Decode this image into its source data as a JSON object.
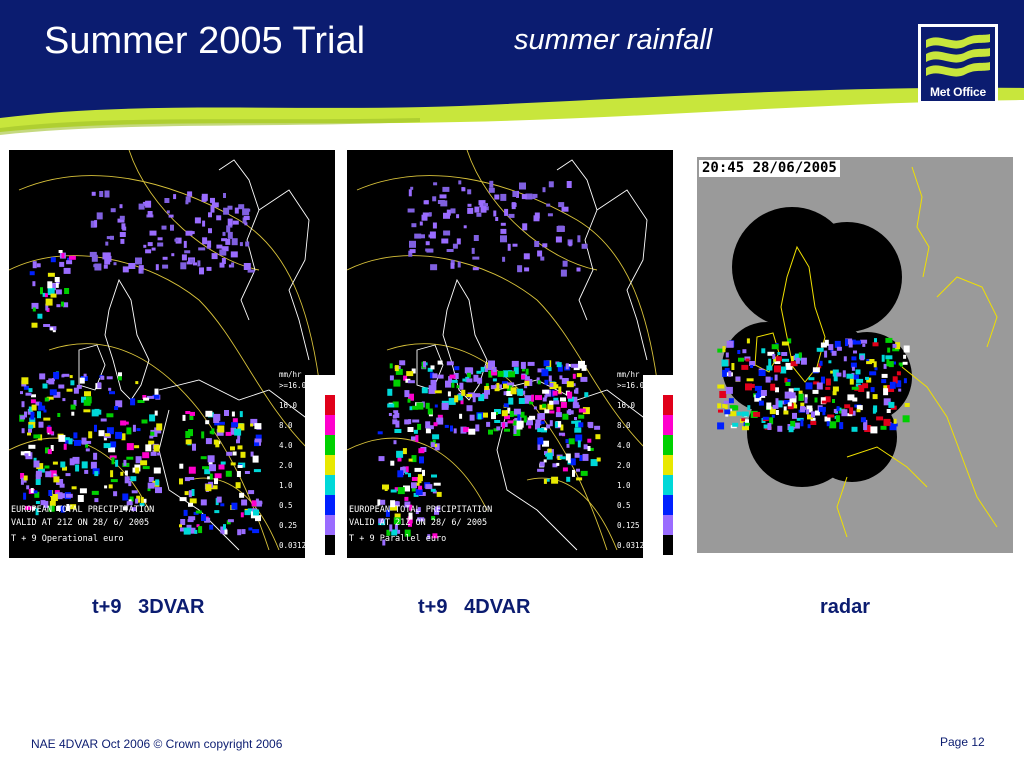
{
  "header": {
    "title": "Summer 2005 Trial",
    "subtitle": "summer rainfall",
    "logo_text": "Met Office",
    "colors": {
      "navy": "#0b1c70",
      "lime": "#c8e63c",
      "white": "#ffffff"
    }
  },
  "panels": [
    {
      "caption": "t+9   3DVAR",
      "overlay_lines": [
        "EUROPEAN TOTAL PRECIPITATION",
        "VALID AT 21Z ON 28/ 6/ 2005",
        "T + 9  Operational euro"
      ],
      "legend": {
        "unit": "mm/hr",
        "labels": [
          ">=16.0",
          "16.0",
          "8.0",
          "4.0",
          "2.0",
          "1.0",
          "0.5",
          "0.25",
          "0.03125"
        ],
        "colors": [
          "#e0001a",
          "#ff00cc",
          "#00d000",
          "#e8e800",
          "#00d8d8",
          "#0020ff",
          "#9a6cff",
          "#000000"
        ]
      }
    },
    {
      "caption": "t+9   4DVAR",
      "overlay_lines": [
        "EUROPEAN TOTAL PRECIPITATION",
        "VALID AT 21Z ON 28/ 6/ 2005",
        "T + 9  Parallel euro"
      ],
      "legend": {
        "unit": "mm/hr",
        "labels": [
          ">=16.0",
          "16.0",
          "8.0",
          "4.0",
          "2.0",
          "1.0",
          "0.5",
          "0.125",
          "0.03125"
        ],
        "colors": [
          "#e0001a",
          "#ff00cc",
          "#00d000",
          "#e8e800",
          "#00d8d8",
          "#0020ff",
          "#9a6cff",
          "#000000"
        ]
      }
    },
    {
      "caption": "radar",
      "timestamp": "20:45 28/06/2005"
    }
  ],
  "footer": {
    "text": "NAE 4DVAR Oct 2006 © Crown copyright 2006",
    "page": "Page 12"
  }
}
